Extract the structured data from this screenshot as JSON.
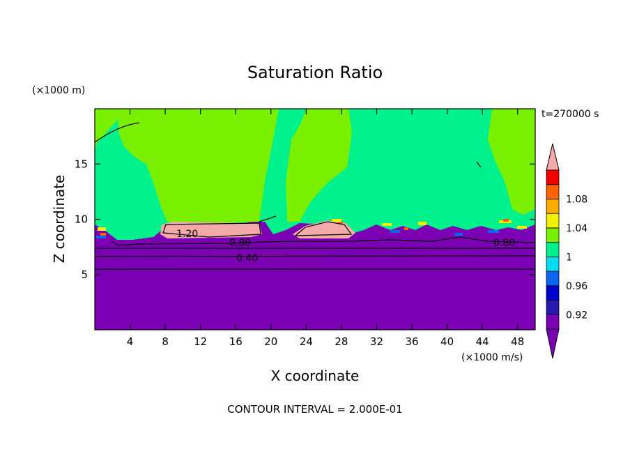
{
  "chart_data": {
    "type": "heatmap",
    "title": "Saturation Ratio",
    "xlabel": "X coordinate",
    "ylabel": "Z coordinate",
    "x_unit": "(×1000 m/s)",
    "y_unit": "(×1000 m)",
    "time_label": "t=270000 s",
    "footer": "CONTOUR INTERVAL = 2.000E-01",
    "xlim": [
      0,
      50
    ],
    "ylim": [
      0,
      20
    ],
    "x_ticks": [
      4,
      8,
      12,
      16,
      20,
      24,
      28,
      32,
      36,
      40,
      44,
      48
    ],
    "y_ticks": [
      5,
      10,
      15
    ],
    "colorbar": {
      "levels": [
        0.92,
        0.94,
        0.96,
        0.98,
        1.0,
        1.02,
        1.04,
        1.06,
        1.08,
        1.1
      ],
      "colors": [
        "#7b00b4",
        "#2a19b0",
        "#0000cc",
        "#0c64f0",
        "#00dcf0",
        "#00f08c",
        "#78f000",
        "#f0f000",
        "#ffaa00",
        "#ff6400",
        "#f00000",
        "#f5aaaa"
      ],
      "tick_labels": [
        "0.92",
        "0.96",
        "1",
        "1.04",
        "1.08"
      ],
      "tick_values": [
        0.92,
        0.96,
        1.0,
        1.04,
        1.08
      ]
    },
    "contour_labels": [
      {
        "text": "1.20",
        "x": 10.5,
        "z": 8.7
      },
      {
        "text": "0.80",
        "x": 16.5,
        "z": 7.9
      },
      {
        "text": "0.40",
        "x": 17.3,
        "z": 6.5
      },
      {
        "text": "0.80",
        "x": 46.5,
        "z": 7.9
      }
    ]
  }
}
